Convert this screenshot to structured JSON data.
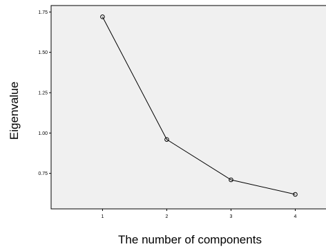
{
  "chart_data": {
    "type": "line",
    "title": "",
    "xlabel": "The number of components",
    "ylabel": "Eigenvalue",
    "x": [
      1,
      2,
      3,
      4
    ],
    "values": [
      1.72,
      0.96,
      0.71,
      0.62
    ],
    "xticks": [
      "1",
      "2",
      "3",
      "4"
    ],
    "yticks": [
      "0.75",
      "1.00",
      "1.25",
      "1.50",
      "1.75"
    ],
    "ytick_values": [
      0.75,
      1.0,
      1.25,
      1.5,
      1.75
    ],
    "xlim": [
      0.2,
      4.5
    ],
    "ylim": [
      0.53,
      1.79
    ],
    "grid": false,
    "marker": "open-circle",
    "colors": {
      "plot_background": "#f0f0f0",
      "line": "#000000",
      "frame": "#000000"
    }
  }
}
